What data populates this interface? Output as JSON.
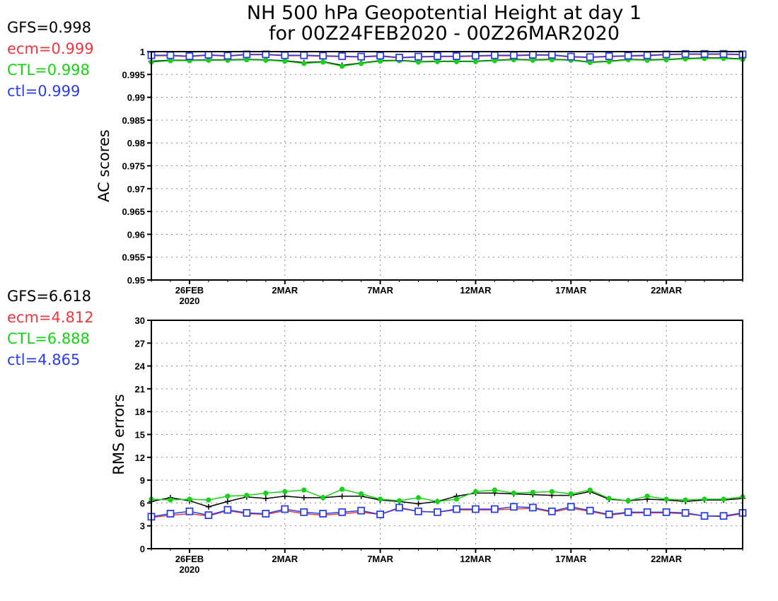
{
  "title": {
    "line1": "NH 500 hPa Geopotential Height at day 1",
    "line2": "for 00Z24FEB2020 - 00Z26MAR2020"
  },
  "colors": {
    "GFS": "#000000",
    "ecm": "#e8383d",
    "CTL": "#14d214",
    "ctl": "#2a3ee8",
    "grid": "#888888"
  },
  "chart_data": [
    {
      "type": "line",
      "ylabel": "AC scores",
      "ylim": [
        0.95,
        1.0
      ],
      "yticks": [
        "0.95",
        "0.955",
        "0.96",
        "0.965",
        "0.97",
        "0.975",
        "0.98",
        "0.985",
        "0.99",
        "0.995",
        "1"
      ],
      "xticks": [
        "26FEB",
        "2MAR",
        "7MAR",
        "12MAR",
        "17MAR",
        "22MAR"
      ],
      "xtick_year": "2020",
      "x_start": "2020-02-24",
      "x_end": "2020-03-26",
      "grid": true,
      "legend": [
        {
          "name": "GFS",
          "text": "GFS=0.998"
        },
        {
          "name": "ecm",
          "text": "ecm=0.999"
        },
        {
          "name": "CTL",
          "text": "CTL=0.998"
        },
        {
          "name": "ctl",
          "text": "ctl=0.999"
        }
      ],
      "series": [
        {
          "name": "GFS",
          "marker": "plus",
          "values": [
            0.9979,
            0.9981,
            0.9981,
            0.9982,
            0.9982,
            0.9983,
            0.9982,
            0.998,
            0.9976,
            0.9978,
            0.997,
            0.9975,
            0.998,
            0.9981,
            0.9978,
            0.9979,
            0.9979,
            0.9979,
            0.9981,
            0.9983,
            0.9982,
            0.9983,
            0.9982,
            0.9977,
            0.9979,
            0.9983,
            0.9982,
            0.9983,
            0.9985,
            0.9986,
            0.9986,
            0.9984
          ]
        },
        {
          "name": "CTL",
          "marker": "dot",
          "values": [
            0.9977,
            0.998,
            0.998,
            0.9981,
            0.9981,
            0.9982,
            0.9981,
            0.9979,
            0.9974,
            0.9977,
            0.9968,
            0.9974,
            0.9979,
            0.998,
            0.9977,
            0.9978,
            0.9978,
            0.9978,
            0.998,
            0.9982,
            0.9981,
            0.9982,
            0.9981,
            0.9976,
            0.9978,
            0.9982,
            0.9981,
            0.9982,
            0.9984,
            0.9985,
            0.9985,
            0.9983
          ]
        },
        {
          "name": "ecm",
          "marker": "none",
          "values": [
            0.9991,
            0.9991,
            0.9989,
            0.9992,
            0.999,
            0.9993,
            0.9993,
            0.9991,
            0.9991,
            0.999,
            0.9989,
            0.9988,
            0.999,
            0.9986,
            0.9988,
            0.9989,
            0.9989,
            0.999,
            0.9991,
            0.9991,
            0.9992,
            0.9992,
            0.9988,
            0.9987,
            0.9989,
            0.999,
            0.9991,
            0.9993,
            0.9994,
            0.9994,
            0.9994,
            0.9993
          ]
        },
        {
          "name": "ctl",
          "marker": "square",
          "values": [
            0.9992,
            0.9992,
            0.999,
            0.9993,
            0.9991,
            0.9994,
            0.9994,
            0.9992,
            0.9992,
            0.9991,
            0.999,
            0.9989,
            0.9991,
            0.9987,
            0.9989,
            0.999,
            0.999,
            0.9991,
            0.9992,
            0.9992,
            0.9993,
            0.9993,
            0.9989,
            0.9988,
            0.999,
            0.9991,
            0.9992,
            0.9994,
            0.9995,
            0.9995,
            0.9995,
            0.9994
          ]
        }
      ]
    },
    {
      "type": "line",
      "ylabel": "RMS errors",
      "ylim": [
        0,
        30
      ],
      "yticks": [
        "0",
        "3",
        "6",
        "9",
        "12",
        "15",
        "18",
        "21",
        "24",
        "27",
        "30"
      ],
      "xticks": [
        "26FEB",
        "2MAR",
        "7MAR",
        "12MAR",
        "17MAR",
        "22MAR"
      ],
      "xtick_year": "2020",
      "x_start": "2020-02-24",
      "x_end": "2020-03-26",
      "grid": true,
      "legend": [
        {
          "name": "GFS",
          "text": "GFS=6.618"
        },
        {
          "name": "ecm",
          "text": "ecm=4.812"
        },
        {
          "name": "CTL",
          "text": "CTL=6.888"
        },
        {
          "name": "ctl",
          "text": "ctl=4.865"
        }
      ],
      "series": [
        {
          "name": "GFS",
          "marker": "plus",
          "values": [
            6.2,
            6.7,
            6.3,
            5.5,
            6.2,
            6.8,
            6.6,
            6.9,
            6.7,
            6.7,
            6.9,
            6.9,
            6.4,
            6.2,
            5.9,
            6.2,
            6.9,
            7.3,
            7.3,
            7.2,
            7.1,
            7.0,
            7.0,
            7.5,
            6.5,
            6.3,
            6.5,
            6.4,
            6.2,
            6.4,
            6.4,
            6.6
          ]
        },
        {
          "name": "CTL",
          "marker": "dot",
          "values": [
            6.5,
            6.4,
            6.5,
            6.4,
            6.9,
            7.0,
            7.3,
            7.5,
            7.7,
            6.7,
            7.8,
            7.2,
            6.5,
            6.3,
            6.7,
            6.2,
            6.5,
            7.5,
            7.7,
            7.3,
            7.4,
            7.5,
            7.2,
            7.7,
            6.6,
            6.3,
            6.9,
            6.5,
            6.4,
            6.5,
            6.5,
            6.8
          ]
        },
        {
          "name": "ecm",
          "marker": "none",
          "values": [
            4.1,
            4.4,
            4.6,
            4.3,
            5.0,
            4.6,
            4.5,
            5.0,
            4.6,
            4.4,
            4.6,
            4.8,
            4.5,
            5.3,
            4.9,
            4.8,
            5.1,
            5.1,
            5.1,
            5.2,
            5.3,
            4.8,
            5.3,
            4.9,
            4.4,
            4.7,
            4.7,
            4.7,
            4.6,
            4.3,
            4.2,
            4.6
          ]
        },
        {
          "name": "ctl",
          "marker": "square",
          "values": [
            4.2,
            4.6,
            4.9,
            4.4,
            5.1,
            4.7,
            4.6,
            5.2,
            4.8,
            4.6,
            4.8,
            5.0,
            4.5,
            5.4,
            4.9,
            4.8,
            5.2,
            5.2,
            5.2,
            5.5,
            5.4,
            4.9,
            5.5,
            5.0,
            4.5,
            4.8,
            4.8,
            4.8,
            4.7,
            4.3,
            4.3,
            4.7
          ]
        }
      ]
    }
  ]
}
